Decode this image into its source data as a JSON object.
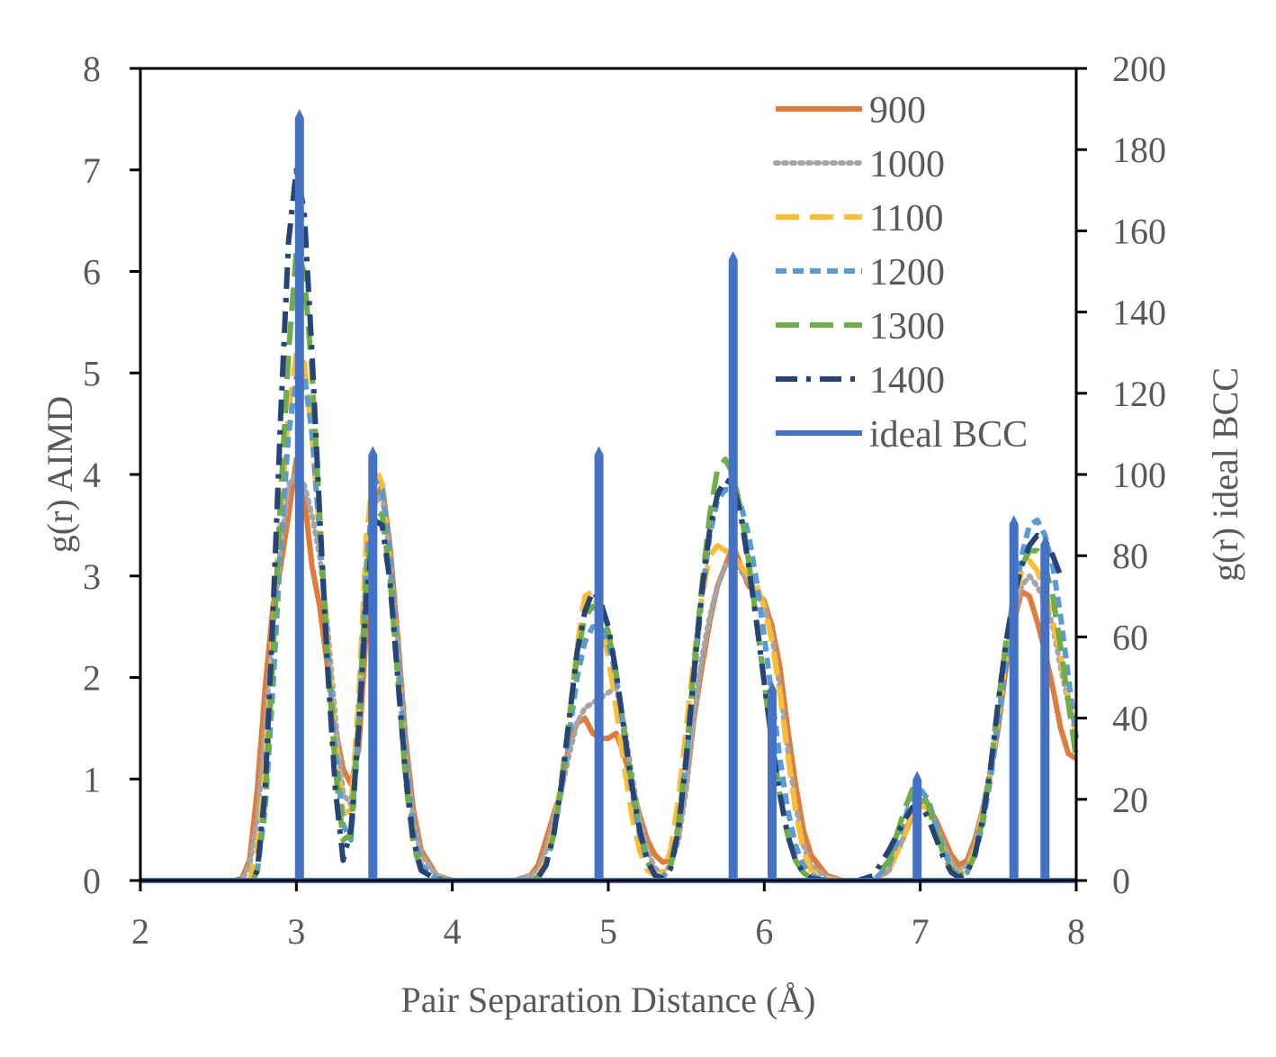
{
  "chart_data": {
    "type": "line",
    "title": "",
    "xlabel": "Pair Separation Distance (Å)",
    "ylabel": "g(r) AIMD",
    "y2label": "g(r) ideal BCC",
    "xlim": [
      2,
      8
    ],
    "ylim": [
      0,
      8
    ],
    "y2lim": [
      0,
      200
    ],
    "x_ticks": [
      2,
      3,
      4,
      5,
      6,
      7,
      8
    ],
    "x_tick_labels": [
      "2",
      "3",
      "4",
      "5",
      "6",
      "7",
      "8"
    ],
    "y_ticks": [
      0,
      1,
      2,
      3,
      4,
      5,
      6,
      7,
      8
    ],
    "y_tick_labels": [
      "0",
      "1",
      "2",
      "3",
      "4",
      "5",
      "6",
      "7",
      "8"
    ],
    "y2_ticks": [
      0,
      20,
      40,
      60,
      80,
      100,
      120,
      140,
      160,
      180,
      200
    ],
    "y2_tick_labels": [
      "0",
      "20",
      "40",
      "60",
      "80",
      "100",
      "120",
      "140",
      "160",
      "180",
      "200"
    ],
    "grid": false,
    "legend_position": "top-right",
    "series": [
      {
        "name": "900",
        "axis": "left",
        "color": "#e07b39",
        "dash": "solid",
        "x": [
          2.0,
          2.6,
          2.65,
          2.7,
          2.75,
          2.8,
          2.85,
          2.9,
          2.95,
          3.0,
          3.05,
          3.1,
          3.15,
          3.2,
          3.25,
          3.3,
          3.35,
          3.4,
          3.45,
          3.5,
          3.55,
          3.6,
          3.65,
          3.7,
          3.75,
          3.8,
          3.9,
          4.0,
          4.2,
          4.4,
          4.5,
          4.55,
          4.6,
          4.65,
          4.7,
          4.75,
          4.8,
          4.85,
          4.9,
          4.95,
          5.0,
          5.05,
          5.1,
          5.15,
          5.2,
          5.25,
          5.3,
          5.35,
          5.4,
          5.45,
          5.5,
          5.55,
          5.6,
          5.65,
          5.7,
          5.75,
          5.8,
          5.85,
          5.9,
          5.95,
          6.0,
          6.05,
          6.1,
          6.15,
          6.2,
          6.25,
          6.3,
          6.4,
          6.5,
          6.6,
          6.7,
          6.8,
          6.9,
          6.95,
          7.0,
          7.05,
          7.1,
          7.15,
          7.2,
          7.25,
          7.3,
          7.35,
          7.4,
          7.45,
          7.5,
          7.55,
          7.6,
          7.65,
          7.7,
          7.75,
          7.8,
          7.85,
          7.9,
          7.95,
          8.0
        ],
        "y": [
          0,
          0,
          0.02,
          0.2,
          0.9,
          1.9,
          2.7,
          3.1,
          3.6,
          4.15,
          3.8,
          3.1,
          2.7,
          2.1,
          1.5,
          1.1,
          0.95,
          1.3,
          2.5,
          3.7,
          3.9,
          3.3,
          2.4,
          1.4,
          0.7,
          0.3,
          0.05,
          0,
          0,
          0,
          0.05,
          0.15,
          0.4,
          0.65,
          0.9,
          1.35,
          1.55,
          1.6,
          1.45,
          1.4,
          1.4,
          1.45,
          1.25,
          0.95,
          0.65,
          0.4,
          0.25,
          0.18,
          0.2,
          0.45,
          0.95,
          1.6,
          2.1,
          2.55,
          2.9,
          3.1,
          3.3,
          3.1,
          2.9,
          2.85,
          2.75,
          2.5,
          2.1,
          1.5,
          0.95,
          0.5,
          0.25,
          0.05,
          0,
          0,
          0,
          0.1,
          0.45,
          0.65,
          0.75,
          0.72,
          0.6,
          0.42,
          0.25,
          0.15,
          0.2,
          0.4,
          0.7,
          1.05,
          1.5,
          2.1,
          2.55,
          2.85,
          2.8,
          2.55,
          2.25,
          1.9,
          1.5,
          1.25,
          1.2
        ]
      },
      {
        "name": "1000",
        "axis": "left",
        "color": "#a5a5a5",
        "dash": "dotted",
        "x": [
          2.0,
          2.65,
          2.7,
          2.75,
          2.8,
          2.85,
          2.9,
          2.95,
          3.0,
          3.05,
          3.1,
          3.15,
          3.2,
          3.25,
          3.3,
          3.35,
          3.4,
          3.45,
          3.5,
          3.55,
          3.6,
          3.65,
          3.7,
          3.75,
          3.8,
          3.9,
          4.0,
          4.4,
          4.5,
          4.55,
          4.6,
          4.65,
          4.7,
          4.75,
          4.8,
          4.85,
          4.9,
          4.95,
          5.0,
          5.05,
          5.1,
          5.15,
          5.2,
          5.25,
          5.3,
          5.35,
          5.4,
          5.45,
          5.5,
          5.55,
          5.6,
          5.65,
          5.7,
          5.75,
          5.8,
          5.85,
          5.9,
          5.95,
          6.0,
          6.05,
          6.1,
          6.15,
          6.2,
          6.25,
          6.3,
          6.4,
          6.5,
          6.7,
          6.8,
          6.9,
          6.95,
          7.0,
          7.05,
          7.1,
          7.15,
          7.2,
          7.25,
          7.3,
          7.35,
          7.4,
          7.45,
          7.5,
          7.55,
          7.6,
          7.65,
          7.7,
          7.75,
          7.8,
          7.85,
          7.9,
          7.95,
          8.0
        ],
        "y": [
          0,
          0,
          0.15,
          0.6,
          1.5,
          2.5,
          3.3,
          3.9,
          4.0,
          3.9,
          3.6,
          3.2,
          2.5,
          1.6,
          0.85,
          0.75,
          1.5,
          2.9,
          3.7,
          3.8,
          3.2,
          2.3,
          1.3,
          0.6,
          0.25,
          0.05,
          0,
          0,
          0.05,
          0.1,
          0.3,
          0.6,
          0.9,
          1.25,
          1.55,
          1.7,
          1.75,
          1.8,
          1.85,
          1.9,
          1.55,
          1.05,
          0.6,
          0.3,
          0.12,
          0.08,
          0.15,
          0.4,
          0.9,
          1.6,
          2.2,
          2.6,
          2.9,
          3.1,
          3.15,
          3.05,
          2.95,
          2.85,
          2.7,
          2.4,
          1.9,
          1.3,
          0.75,
          0.35,
          0.15,
          0.03,
          0,
          0,
          0.1,
          0.45,
          0.7,
          0.8,
          0.75,
          0.55,
          0.35,
          0.18,
          0.1,
          0.15,
          0.35,
          0.7,
          1.1,
          1.6,
          2.2,
          2.6,
          2.9,
          3.0,
          2.9,
          2.75,
          2.5,
          2.1,
          1.75,
          1.5
        ]
      },
      {
        "name": "1100",
        "axis": "left",
        "color": "#fbbd34",
        "dash": "longdash",
        "x": [
          2.0,
          2.7,
          2.75,
          2.8,
          2.85,
          2.9,
          2.95,
          3.0,
          3.05,
          3.1,
          3.15,
          3.2,
          3.25,
          3.3,
          3.35,
          3.4,
          3.45,
          3.5,
          3.55,
          3.6,
          3.65,
          3.7,
          3.75,
          3.8,
          3.9,
          4.0,
          4.5,
          4.55,
          4.6,
          4.65,
          4.7,
          4.75,
          4.8,
          4.85,
          4.9,
          4.95,
          5.0,
          5.05,
          5.1,
          5.15,
          5.2,
          5.25,
          5.3,
          5.35,
          5.4,
          5.45,
          5.5,
          5.55,
          5.6,
          5.65,
          5.7,
          5.75,
          5.8,
          5.85,
          5.9,
          5.95,
          6.0,
          6.05,
          6.1,
          6.15,
          6.2,
          6.25,
          6.3,
          6.4,
          6.5,
          6.7,
          6.8,
          6.9,
          6.95,
          7.0,
          7.05,
          7.1,
          7.15,
          7.2,
          7.25,
          7.3,
          7.35,
          7.4,
          7.45,
          7.5,
          7.55,
          7.6,
          7.65,
          7.7,
          7.75,
          7.8,
          7.85,
          7.9,
          7.95,
          8.0
        ],
        "y": [
          0,
          0,
          0.3,
          1.1,
          2.4,
          3.6,
          4.6,
          5.2,
          5.1,
          4.4,
          3.4,
          2.4,
          1.4,
          0.65,
          0.7,
          1.8,
          3.4,
          4.1,
          3.9,
          3.1,
          2.1,
          1.1,
          0.45,
          0.15,
          0.02,
          0,
          0,
          0.05,
          0.2,
          0.5,
          1.0,
          1.6,
          2.3,
          2.8,
          2.85,
          2.6,
          2.2,
          1.7,
          1.15,
          0.65,
          0.3,
          0.1,
          0.05,
          0.08,
          0.3,
          0.8,
          1.5,
          2.2,
          2.8,
          3.2,
          3.3,
          3.25,
          3.2,
          3.1,
          3.0,
          2.9,
          2.7,
          2.35,
          1.85,
          1.25,
          0.7,
          0.3,
          0.1,
          0.02,
          0,
          0,
          0.1,
          0.45,
          0.7,
          0.75,
          0.7,
          0.5,
          0.28,
          0.12,
          0.06,
          0.12,
          0.3,
          0.65,
          1.05,
          1.6,
          2.2,
          2.7,
          3.05,
          3.15,
          3.05,
          2.85,
          2.55,
          2.2,
          1.8,
          1.4
        ]
      },
      {
        "name": "1200",
        "axis": "left",
        "color": "#5b9bd5",
        "dash": "dashed",
        "x": [
          2.0,
          2.72,
          2.75,
          2.8,
          2.85,
          2.9,
          2.95,
          3.0,
          3.05,
          3.1,
          3.15,
          3.2,
          3.25,
          3.3,
          3.35,
          3.4,
          3.45,
          3.5,
          3.55,
          3.6,
          3.65,
          3.7,
          3.75,
          3.8,
          3.9,
          4.0,
          4.5,
          4.55,
          4.6,
          4.65,
          4.7,
          4.75,
          4.8,
          4.85,
          4.9,
          4.95,
          5.0,
          5.05,
          5.1,
          5.15,
          5.2,
          5.25,
          5.3,
          5.35,
          5.4,
          5.45,
          5.5,
          5.55,
          5.6,
          5.65,
          5.7,
          5.75,
          5.8,
          5.85,
          5.9,
          5.95,
          6.0,
          6.05,
          6.1,
          6.15,
          6.2,
          6.25,
          6.3,
          6.4,
          6.5,
          6.7,
          6.8,
          6.9,
          6.95,
          7.0,
          7.05,
          7.1,
          7.15,
          7.2,
          7.25,
          7.3,
          7.35,
          7.4,
          7.45,
          7.5,
          7.55,
          7.6,
          7.65,
          7.7,
          7.75,
          7.8,
          7.85,
          7.9,
          7.95,
          8.0
        ],
        "y": [
          0,
          0,
          0.1,
          0.7,
          1.9,
          3.3,
          4.4,
          4.95,
          5.0,
          4.4,
          3.4,
          2.3,
          1.3,
          0.55,
          0.4,
          1.5,
          3.1,
          3.95,
          3.85,
          3.2,
          2.2,
          1.2,
          0.5,
          0.15,
          0.02,
          0,
          0,
          0.03,
          0.15,
          0.45,
          0.9,
          1.45,
          2.0,
          2.35,
          2.5,
          2.5,
          2.35,
          2.0,
          1.45,
          0.9,
          0.45,
          0.18,
          0.05,
          0.03,
          0.15,
          0.55,
          1.2,
          2.0,
          2.8,
          3.4,
          3.75,
          3.85,
          3.85,
          3.7,
          3.4,
          2.95,
          2.4,
          1.8,
          1.2,
          0.7,
          0.35,
          0.15,
          0.05,
          0,
          0,
          0,
          0.15,
          0.6,
          0.85,
          0.9,
          0.8,
          0.55,
          0.3,
          0.12,
          0.05,
          0.08,
          0.25,
          0.55,
          1.0,
          1.55,
          2.15,
          2.7,
          3.2,
          3.5,
          3.55,
          3.4,
          3.1,
          2.6,
          2.0,
          1.4
        ]
      },
      {
        "name": "1300",
        "axis": "left",
        "color": "#70ad47",
        "dash": "longdash",
        "x": [
          2.0,
          2.72,
          2.75,
          2.8,
          2.85,
          2.9,
          2.95,
          3.0,
          3.05,
          3.1,
          3.15,
          3.2,
          3.25,
          3.3,
          3.35,
          3.4,
          3.45,
          3.5,
          3.55,
          3.6,
          3.65,
          3.7,
          3.75,
          3.8,
          3.9,
          4.0,
          4.5,
          4.55,
          4.6,
          4.65,
          4.7,
          4.75,
          4.8,
          4.85,
          4.9,
          4.95,
          5.0,
          5.05,
          5.1,
          5.15,
          5.2,
          5.25,
          5.3,
          5.35,
          5.4,
          5.45,
          5.5,
          5.55,
          5.6,
          5.65,
          5.7,
          5.75,
          5.8,
          5.85,
          5.9,
          5.95,
          6.0,
          6.05,
          6.1,
          6.15,
          6.2,
          6.25,
          6.3,
          6.4,
          6.5,
          6.7,
          6.8,
          6.9,
          6.95,
          7.0,
          7.05,
          7.1,
          7.15,
          7.2,
          7.25,
          7.3,
          7.35,
          7.4,
          7.45,
          7.5,
          7.55,
          7.6,
          7.65,
          7.7,
          7.75,
          7.8,
          7.85,
          7.9,
          7.95,
          8.0
        ],
        "y": [
          0,
          0,
          0.1,
          0.8,
          2.2,
          3.8,
          5.2,
          6.2,
          6.0,
          5.0,
          3.6,
          2.2,
          1.1,
          0.4,
          0.45,
          1.6,
          3.0,
          3.65,
          3.6,
          3.0,
          2.0,
          1.0,
          0.35,
          0.1,
          0.01,
          0,
          0,
          0.03,
          0.15,
          0.45,
          0.95,
          1.6,
          2.2,
          2.6,
          2.7,
          2.65,
          2.45,
          2.05,
          1.5,
          0.95,
          0.5,
          0.2,
          0.05,
          0.03,
          0.15,
          0.55,
          1.25,
          2.1,
          2.9,
          3.6,
          4.05,
          4.15,
          4.0,
          3.65,
          3.15,
          2.55,
          1.95,
          1.35,
          0.85,
          0.45,
          0.2,
          0.08,
          0.02,
          0,
          0,
          0,
          0.2,
          0.7,
          0.9,
          0.88,
          0.75,
          0.5,
          0.25,
          0.1,
          0.05,
          0.08,
          0.25,
          0.6,
          1.1,
          1.75,
          2.35,
          2.8,
          3.1,
          3.25,
          3.25,
          3.1,
          2.8,
          2.3,
          1.75,
          1.2
        ]
      },
      {
        "name": "1400",
        "axis": "left",
        "color": "#264478",
        "dash": "dashdot",
        "x": [
          2.0,
          2.72,
          2.75,
          2.8,
          2.85,
          2.9,
          2.95,
          3.0,
          3.05,
          3.1,
          3.15,
          3.2,
          3.25,
          3.3,
          3.35,
          3.4,
          3.45,
          3.5,
          3.55,
          3.6,
          3.65,
          3.7,
          3.75,
          3.8,
          3.9,
          4.0,
          4.5,
          4.55,
          4.6,
          4.65,
          4.7,
          4.75,
          4.8,
          4.85,
          4.9,
          4.95,
          5.0,
          5.05,
          5.1,
          5.15,
          5.2,
          5.25,
          5.3,
          5.35,
          5.4,
          5.45,
          5.5,
          5.55,
          5.6,
          5.65,
          5.7,
          5.75,
          5.8,
          5.85,
          5.9,
          5.95,
          6.0,
          6.05,
          6.1,
          6.15,
          6.2,
          6.25,
          6.3,
          6.4,
          6.5,
          6.6,
          6.7,
          6.8,
          6.9,
          6.95,
          7.0,
          7.05,
          7.1,
          7.15,
          7.2,
          7.25,
          7.3,
          7.35,
          7.4,
          7.45,
          7.5,
          7.55,
          7.6,
          7.65,
          7.7,
          7.75,
          7.8,
          7.85,
          7.9
        ],
        "y": [
          0,
          0,
          0.1,
          0.9,
          2.6,
          4.6,
          6.3,
          7.0,
          6.6,
          5.2,
          3.6,
          2.1,
          0.9,
          0.2,
          0.5,
          1.5,
          2.8,
          3.55,
          3.5,
          2.95,
          2.0,
          1.05,
          0.4,
          0.1,
          0.01,
          0,
          0,
          0.03,
          0.15,
          0.45,
          0.95,
          1.6,
          2.25,
          2.65,
          2.85,
          2.75,
          2.5,
          2.05,
          1.5,
          0.95,
          0.5,
          0.2,
          0.05,
          0.02,
          0.12,
          0.5,
          1.2,
          2.05,
          2.85,
          3.45,
          3.8,
          3.95,
          3.9,
          3.6,
          3.1,
          2.55,
          1.95,
          1.35,
          0.85,
          0.45,
          0.2,
          0.08,
          0.02,
          0,
          0,
          0,
          0.05,
          0.3,
          0.6,
          0.72,
          0.75,
          0.62,
          0.42,
          0.22,
          0.08,
          0.03,
          0.08,
          0.25,
          0.6,
          1.1,
          1.75,
          2.35,
          2.8,
          3.1,
          3.3,
          3.4,
          3.35,
          3.2,
          3.0
        ]
      },
      {
        "name": "ideal BCC",
        "axis": "right",
        "color": "#4472c4",
        "dash": "solid",
        "peaks": [
          {
            "x": 3.02,
            "y": 190
          },
          {
            "x": 3.49,
            "y": 107
          },
          {
            "x": 4.94,
            "y": 107
          },
          {
            "x": 5.8,
            "y": 155
          },
          {
            "x": 6.05,
            "y": 49
          },
          {
            "x": 6.98,
            "y": 27
          },
          {
            "x": 7.6,
            "y": 90
          },
          {
            "x": 7.8,
            "y": 85
          }
        ]
      }
    ]
  }
}
